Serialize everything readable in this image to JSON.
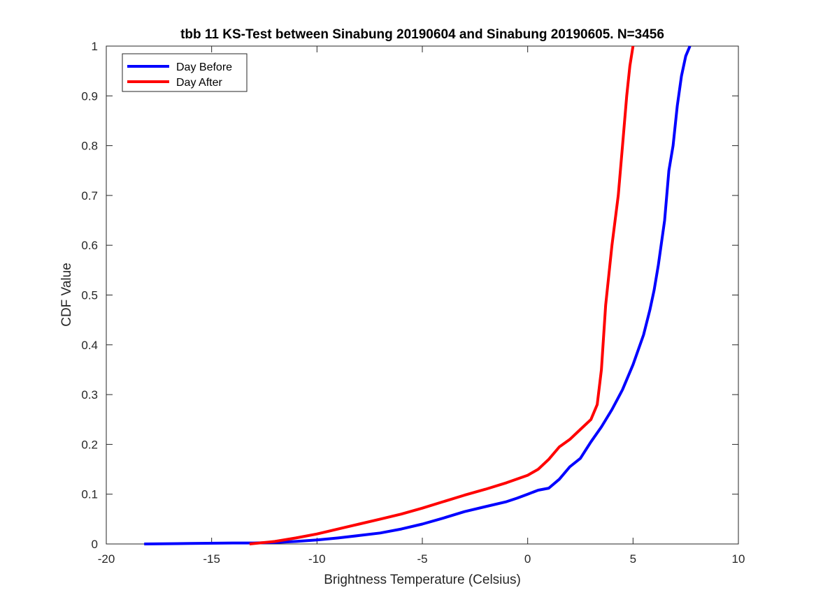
{
  "chart_data": {
    "type": "line",
    "title": "tbb 11 KS-Test between Sinabung 20190604 and Sinabung 20190605. N=3456",
    "xlabel": "Brightness Temperature (Celsius)",
    "ylabel": "CDF Value",
    "xlim": [
      -20,
      10
    ],
    "ylim": [
      0,
      1
    ],
    "xticks": [
      -20,
      -15,
      -10,
      -5,
      0,
      5,
      10
    ],
    "yticks": [
      0,
      0.1,
      0.2,
      0.3,
      0.4,
      0.5,
      0.6,
      0.7,
      0.8,
      0.9,
      1
    ],
    "grid": false,
    "legend_position": "top-left",
    "series": [
      {
        "name": "Day Before",
        "color": "#0000ff",
        "x": [
          -18.2,
          -16.0,
          -14.0,
          -13.0,
          -12.0,
          -11.0,
          -10.0,
          -9.0,
          -8.0,
          -7.0,
          -6.0,
          -5.0,
          -4.0,
          -3.0,
          -2.0,
          -1.0,
          -0.5,
          0.0,
          0.5,
          1.0,
          1.5,
          2.0,
          2.5,
          3.0,
          3.5,
          4.0,
          4.5,
          5.0,
          5.5,
          5.8,
          6.0,
          6.2,
          6.5,
          6.7,
          6.9,
          7.1,
          7.3,
          7.5,
          7.7
        ],
        "y": [
          0.0,
          0.001,
          0.002,
          0.002,
          0.003,
          0.005,
          0.008,
          0.012,
          0.017,
          0.022,
          0.03,
          0.04,
          0.052,
          0.065,
          0.075,
          0.085,
          0.092,
          0.1,
          0.108,
          0.112,
          0.13,
          0.155,
          0.172,
          0.205,
          0.235,
          0.27,
          0.31,
          0.36,
          0.42,
          0.47,
          0.51,
          0.56,
          0.65,
          0.75,
          0.8,
          0.88,
          0.94,
          0.98,
          1.0
        ]
      },
      {
        "name": "Day After",
        "color": "#ff0000",
        "x": [
          -13.2,
          -12.0,
          -11.0,
          -10.0,
          -9.0,
          -8.0,
          -7.0,
          -6.0,
          -5.0,
          -4.0,
          -3.0,
          -2.0,
          -1.0,
          0.0,
          0.5,
          1.0,
          1.5,
          2.0,
          2.5,
          3.0,
          3.3,
          3.5,
          3.7,
          4.0,
          4.3,
          4.5,
          4.7,
          4.85,
          5.0
        ],
        "y": [
          0.0,
          0.005,
          0.012,
          0.02,
          0.03,
          0.04,
          0.05,
          0.06,
          0.072,
          0.085,
          0.098,
          0.11,
          0.123,
          0.138,
          0.15,
          0.17,
          0.195,
          0.21,
          0.23,
          0.25,
          0.28,
          0.35,
          0.48,
          0.6,
          0.7,
          0.8,
          0.9,
          0.96,
          1.0
        ]
      }
    ]
  }
}
